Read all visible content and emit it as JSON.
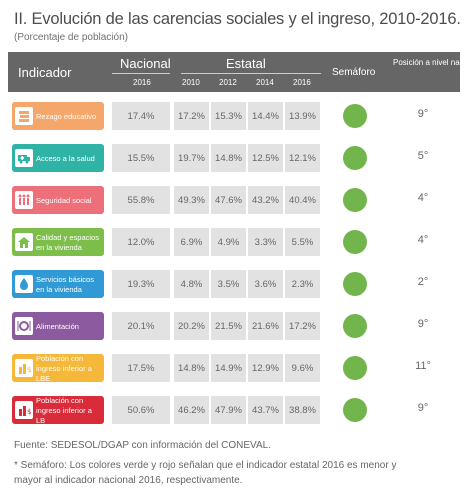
{
  "header": {
    "title": "II. Evolución de las carencias sociales y el ingreso, 2010-2016.",
    "subtitle": "(Porcentaje de población)"
  },
  "table": {
    "col_indicador": "Indicador",
    "col_nacional": "Nacional",
    "col_nacional_year": "2016",
    "col_estatal": "Estatal",
    "estatal_years": [
      "2010",
      "2012",
      "2014",
      "2016"
    ],
    "col_semaforo": "Semáforo",
    "col_posicion": "Posición a nivel nacional",
    "rows": [
      {
        "label": "Rezago educativo",
        "icon": "books-icon",
        "color": "#f5a66a",
        "nacional": "17.4%",
        "estatal": [
          "17.2%",
          "15.3%",
          "14.4%",
          "13.9%"
        ],
        "semaforo": "#71b54c",
        "posicion": "9°"
      },
      {
        "label": "Acceso a la salud",
        "icon": "ambulance-icon",
        "color": "#2fb3a6",
        "nacional": "15.5%",
        "estatal": [
          "19.7%",
          "14.8%",
          "12.5%",
          "12.1%"
        ],
        "semaforo": "#71b54c",
        "posicion": "5°"
      },
      {
        "label": "Seguridad social",
        "icon": "family-icon",
        "color": "#ec6f7a",
        "nacional": "55.8%",
        "estatal": [
          "49.3%",
          "47.6%",
          "43.2%",
          "40.4%"
        ],
        "semaforo": "#71b54c",
        "posicion": "4°"
      },
      {
        "label": "Calidad y espacios en la vivienda",
        "icon": "house-icon",
        "color": "#7dbe4a",
        "nacional": "12.0%",
        "estatal": [
          "6.9%",
          "4.9%",
          "3.3%",
          "5.5%"
        ],
        "semaforo": "#71b54c",
        "posicion": "4°"
      },
      {
        "label": "Servicios básicos en la vivienda",
        "icon": "water-drop-icon",
        "color": "#2f9ad6",
        "nacional": "19.3%",
        "estatal": [
          "4.8%",
          "3.5%",
          "3.6%",
          "2.3%"
        ],
        "semaforo": "#71b54c",
        "posicion": "2°"
      },
      {
        "label": "Alimentación",
        "icon": "plate-icon",
        "color": "#8c5a9e",
        "nacional": "20.1%",
        "estatal": [
          "20.2%",
          "21.5%",
          "21.6%",
          "17.2%"
        ],
        "semaforo": "#71b54c",
        "posicion": "9°"
      },
      {
        "label": "Población con ingreso inferior a LBE",
        "icon": "money-icon",
        "color": "#f5b83a",
        "nacional": "17.5%",
        "estatal": [
          "14.8%",
          "14.9%",
          "12.9%",
          "9.6%"
        ],
        "semaforo": "#71b54c",
        "posicion": "11°"
      },
      {
        "label": "Población con ingreso inferior a LB",
        "icon": "money-icon",
        "color": "#d92b3a",
        "nacional": "50.6%",
        "estatal": [
          "46.2%",
          "47.9%",
          "43.7%",
          "38.8%"
        ],
        "semaforo": "#71b54c",
        "posicion": "9°"
      }
    ]
  },
  "footer": {
    "fuente": "Fuente: SEDESOL/DGAP con información del CONEVAL.",
    "nota_line1": "* Semáforo: Los colores verde y rojo señalan que el indicador estatal 2016 es menor y",
    "nota_line2": "mayor al indicador nacional 2016, respectivamente."
  }
}
